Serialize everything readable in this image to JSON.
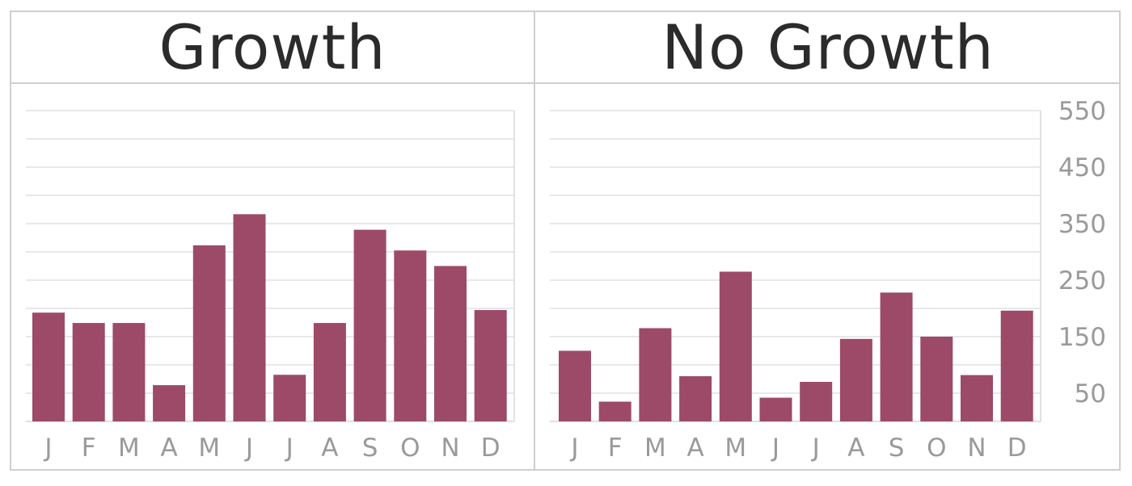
{
  "panels": {
    "left_title": "Growth",
    "right_title": "No Growth"
  },
  "colors": {
    "bar": "#9c4a68",
    "grid": "#d9d9d9",
    "tick": "#9a9a9a",
    "border": "#cfcfcf"
  },
  "chart_data": [
    {
      "type": "bar",
      "title": "Growth",
      "categories": [
        "J",
        "F",
        "M",
        "A",
        "M",
        "J",
        "J",
        "A",
        "S",
        "O",
        "N",
        "D"
      ],
      "values": [
        210,
        190,
        190,
        70,
        340,
        400,
        90,
        190,
        370,
        330,
        300,
        215
      ],
      "ylim": [
        0,
        600
      ],
      "grid": true
    },
    {
      "type": "bar",
      "title": "No Growth",
      "categories": [
        "J",
        "F",
        "M",
        "A",
        "M",
        "J",
        "J",
        "A",
        "S",
        "O",
        "N",
        "D"
      ],
      "values": [
        125,
        35,
        165,
        80,
        265,
        42,
        70,
        146,
        228,
        150,
        82,
        196
      ],
      "yticks": [
        50,
        150,
        250,
        350,
        450,
        550
      ],
      "ylim": [
        0,
        550
      ],
      "grid": true
    }
  ]
}
